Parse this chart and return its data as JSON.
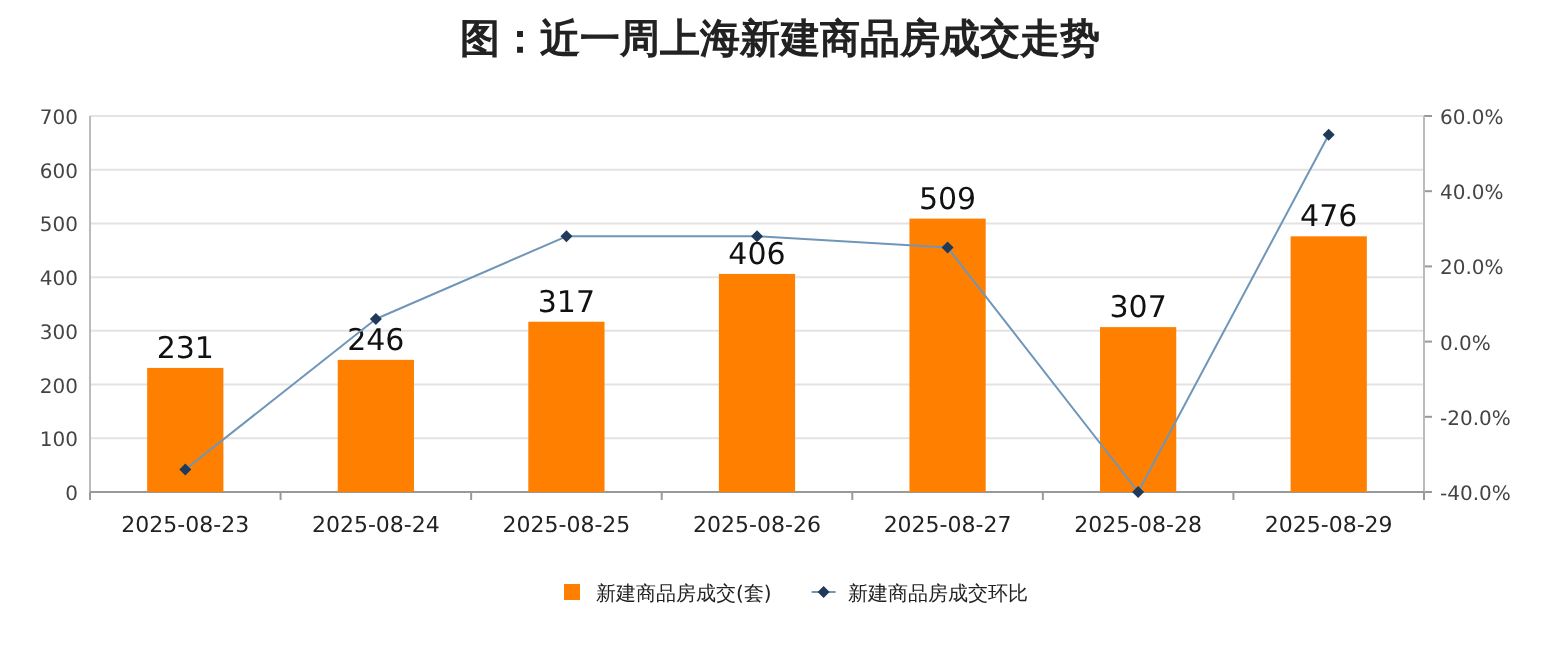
{
  "chart_data": {
    "type": "bar",
    "title": "图：近一周上海新建商品房成交走势",
    "categories": [
      "2025-08-23",
      "2025-08-24",
      "2025-08-25",
      "2025-08-26",
      "2025-08-27",
      "2025-08-28",
      "2025-08-29"
    ],
    "series": [
      {
        "name": "新建商品房成交(套)",
        "color": "#ff8000",
        "values": [
          231,
          246,
          317,
          406,
          509,
          307,
          476
        ],
        "value_labels": [
          "231",
          "246",
          "317",
          "406",
          "509",
          "307",
          "476"
        ]
      },
      {
        "name": "新建商品房成交环比",
        "type": "line",
        "axis": "y2",
        "color": "#6f96b8",
        "marker": "diamond",
        "values": [
          -34,
          6,
          28,
          28,
          25,
          -40,
          55
        ]
      }
    ],
    "ylim": [
      0,
      700
    ],
    "yticks": [
      0,
      100,
      200,
      300,
      400,
      500,
      600,
      700
    ],
    "y2lim": [
      -40,
      60
    ],
    "y2ticks": [
      {
        "value": -40,
        "label": "-40.0%"
      },
      {
        "value": -20,
        "label": "-20.0%"
      },
      {
        "value": 0,
        "label": "0.0%"
      },
      {
        "value": 20,
        "label": "20.0%"
      },
      {
        "value": 40,
        "label": "40.0%"
      },
      {
        "value": 60,
        "label": "60.0%"
      }
    ],
    "grid": "y",
    "legend": "bottom"
  }
}
